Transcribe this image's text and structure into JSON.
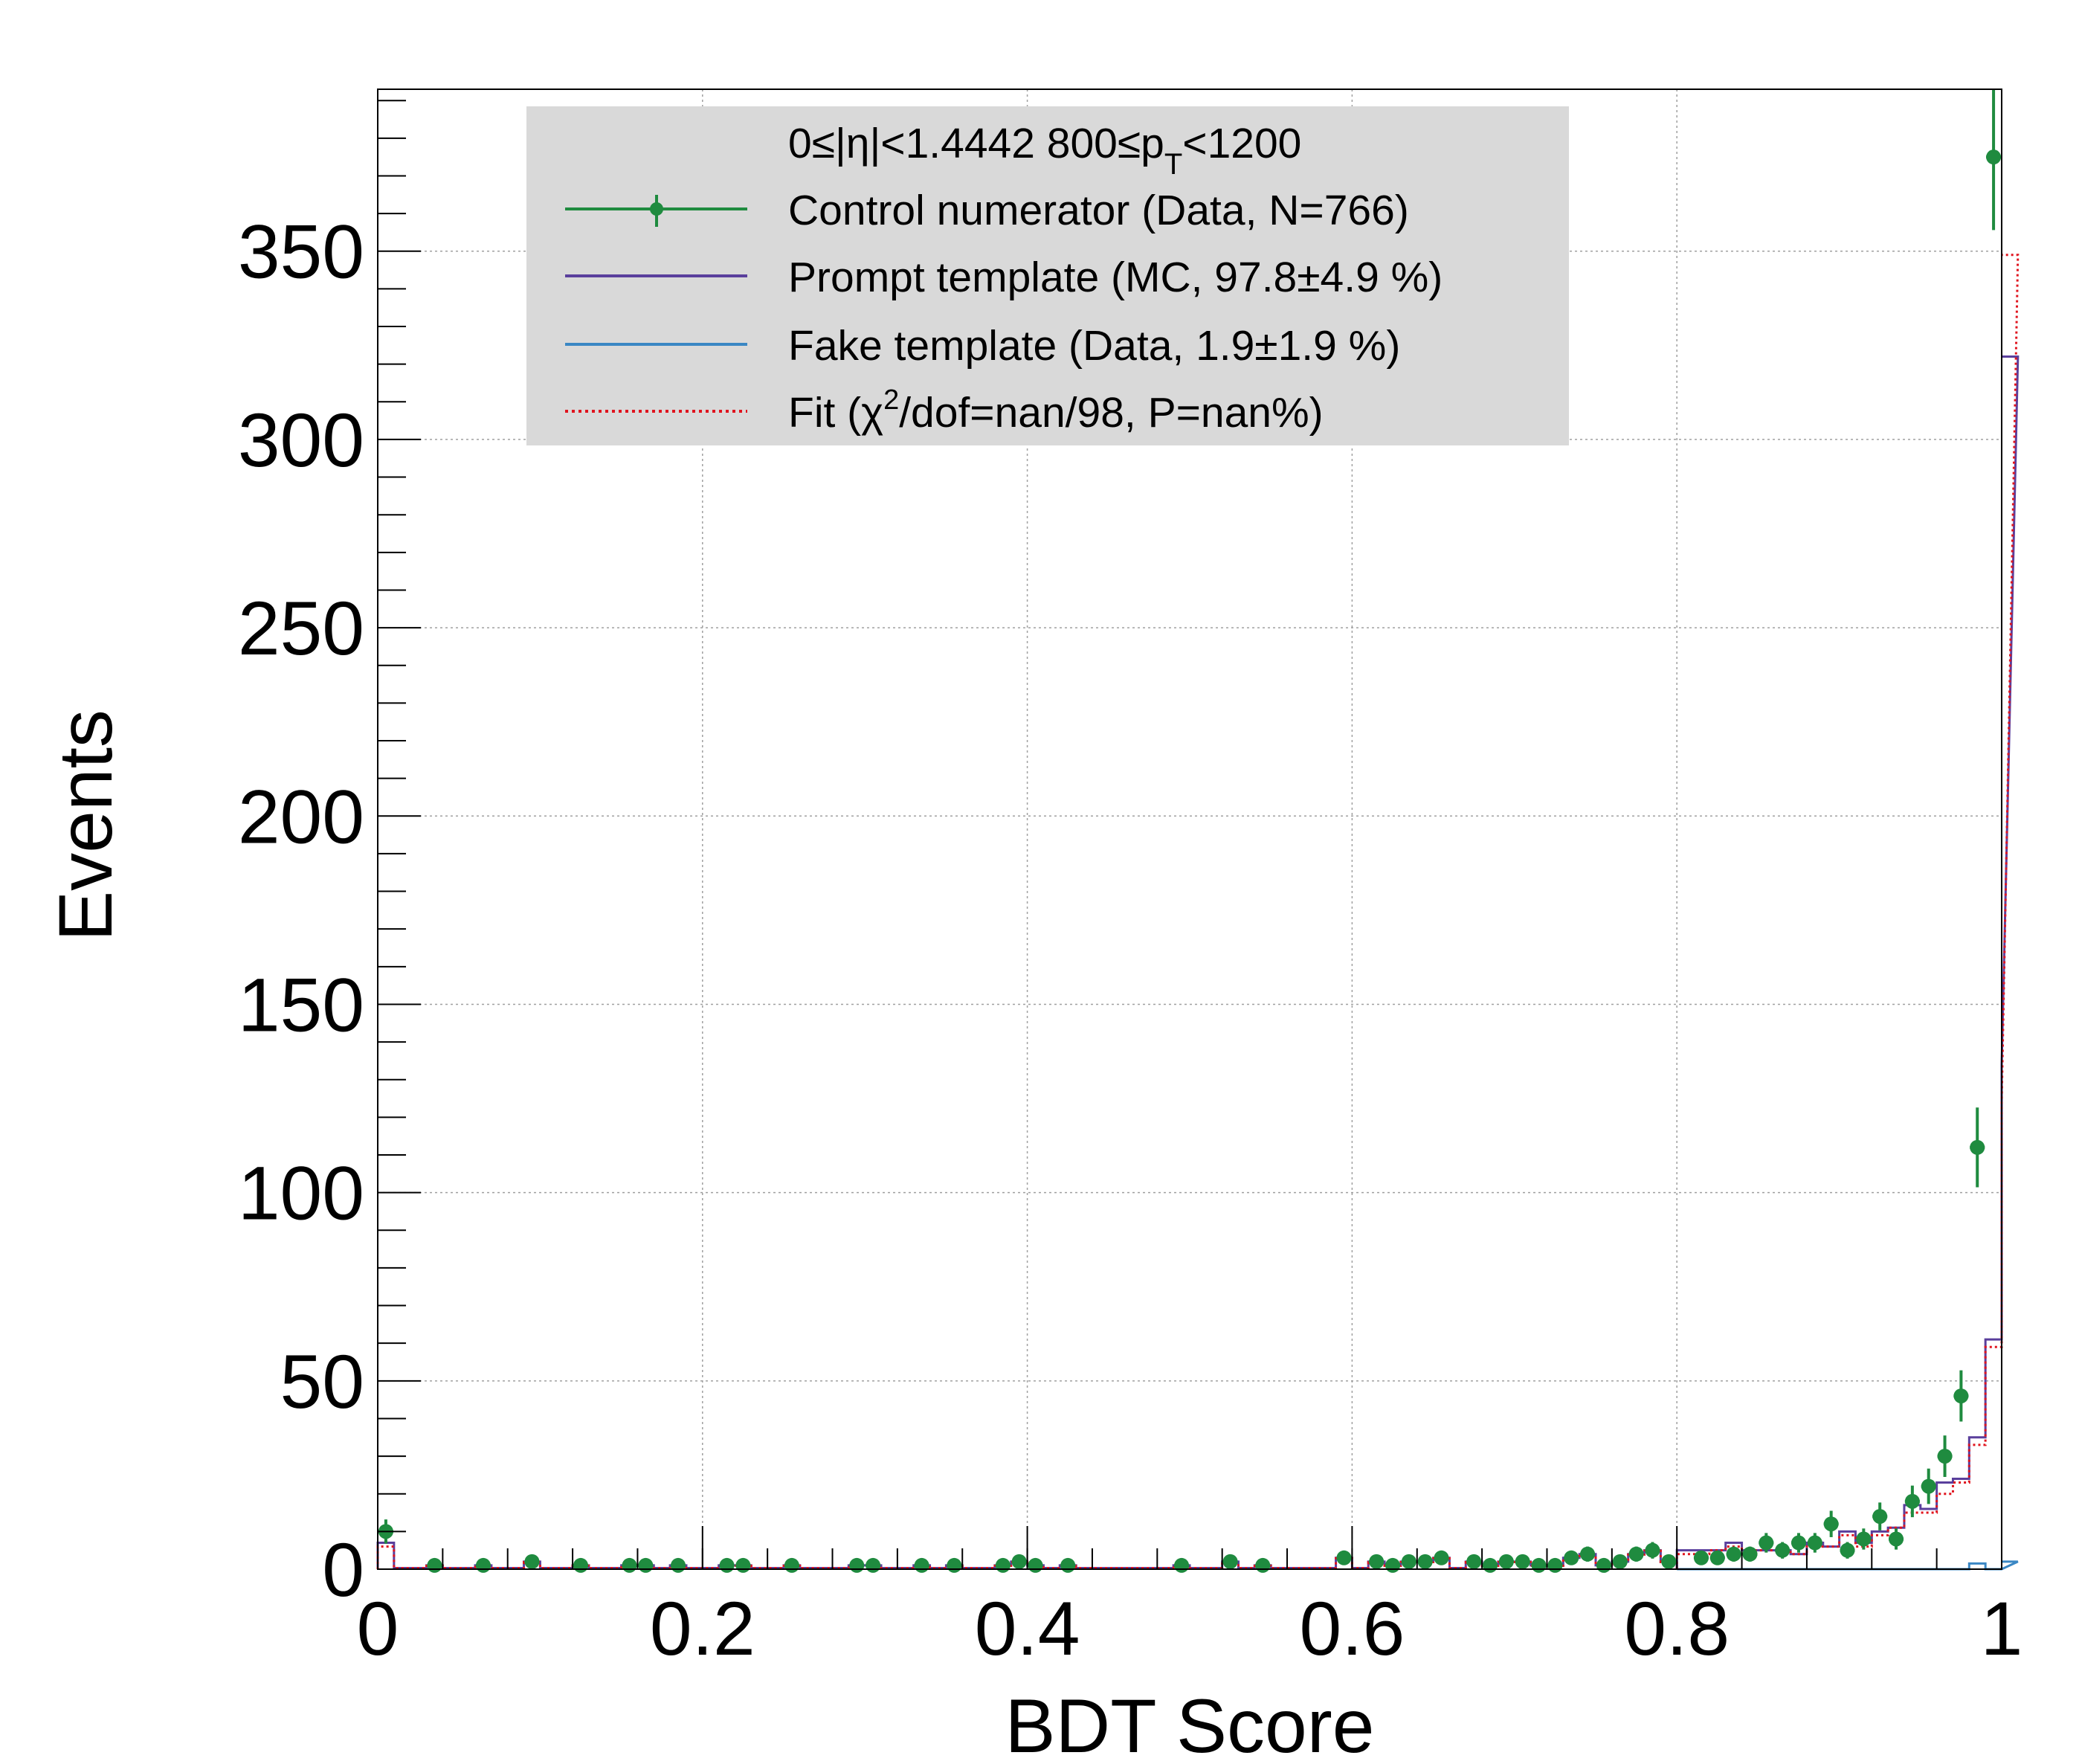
{
  "chart_data": {
    "type": "histogram",
    "xlabel": "BDT Score",
    "ylabel": "Events",
    "xlim": [
      0,
      1
    ],
    "ylim": [
      0,
      393
    ],
    "grid": true,
    "x_ticks": [
      0,
      0.2,
      0.4,
      0.6,
      0.8,
      1
    ],
    "x_tick_labels": [
      "0",
      "0.2",
      "0.4",
      "0.6",
      "0.8",
      "1"
    ],
    "y_ticks": [
      0,
      50,
      100,
      150,
      200,
      250,
      300,
      350
    ],
    "y_tick_labels": [
      "0",
      "50",
      "100",
      "150",
      "200",
      "250",
      "300",
      "350"
    ],
    "bin_edges_start": 0.8,
    "bin_width": 0.01,
    "legend": {
      "placement": "top-left",
      "header": {
        "main": "0≤|η|<1.4442  800≤p",
        "sub": "T",
        "tail": "<1200"
      },
      "entries": [
        {
          "key": "data",
          "label": "Control numerator (Data, N=766)"
        },
        {
          "key": "prompt",
          "label": "Prompt template (MC, 97.8±4.9 %)"
        },
        {
          "key": "fake",
          "label": "Fake template (Data, 1.9±1.9 %)"
        },
        {
          "key": "fit",
          "label_pre": "Fit (χ",
          "label_sup": "2",
          "label_post": "/dof=nan/98, P=nan%)"
        }
      ]
    },
    "colors": {
      "data": "#1f8b3f",
      "prompt": "#5a3f9c",
      "fake": "#3a87c4",
      "fit": "#e0141e",
      "legend_bg": "#d9d9d9",
      "grid": "#a0a0a0"
    },
    "series": [
      {
        "name": "Control numerator (Data, N=766)",
        "key": "data",
        "style": "points",
        "x": [
          0.005,
          0.035,
          0.065,
          0.095,
          0.125,
          0.155,
          0.165,
          0.185,
          0.215,
          0.225,
          0.255,
          0.295,
          0.305,
          0.335,
          0.355,
          0.385,
          0.395,
          0.405,
          0.425,
          0.495,
          0.525,
          0.545,
          0.595,
          0.615,
          0.625,
          0.635,
          0.645,
          0.655,
          0.675,
          0.685,
          0.695,
          0.705,
          0.715,
          0.725,
          0.735,
          0.745,
          0.755,
          0.765,
          0.775,
          0.785,
          0.795,
          0.815,
          0.825,
          0.835,
          0.845,
          0.855,
          0.865,
          0.875,
          0.885,
          0.895,
          0.905,
          0.915,
          0.925,
          0.935,
          0.945,
          0.955,
          0.965,
          0.975,
          0.985,
          0.995
        ],
        "y": [
          10,
          1,
          1,
          2,
          1,
          1,
          1,
          1,
          1,
          1,
          1,
          1,
          1,
          1,
          1,
          1,
          2,
          1,
          1,
          1,
          2,
          1,
          3,
          2,
          1,
          2,
          2,
          3,
          2,
          1,
          2,
          2,
          1,
          1,
          3,
          4,
          1,
          2,
          4,
          5,
          2,
          3,
          3,
          4,
          4,
          7,
          5,
          7,
          7,
          12,
          5,
          8,
          14,
          8,
          18,
          22,
          30,
          46,
          112,
          375
        ],
        "yerr": [
          3.2,
          1,
          1,
          1.4,
          1,
          1,
          1,
          1,
          1,
          1,
          1,
          1,
          1,
          1,
          1,
          1,
          1.4,
          1,
          1,
          1,
          1.4,
          1,
          1.7,
          1.4,
          1,
          1.4,
          1.4,
          1.7,
          1.4,
          1,
          1.4,
          1.4,
          1,
          1,
          1.7,
          2,
          1,
          1.4,
          2,
          2.2,
          1.4,
          1.7,
          1.7,
          2,
          2,
          2.6,
          2.2,
          2.6,
          2.6,
          3.5,
          2.2,
          2.8,
          3.7,
          2.8,
          4.2,
          4.7,
          5.5,
          6.8,
          10.6,
          19.4
        ]
      },
      {
        "name": "Prompt template (MC, 97.8±4.9 %)",
        "key": "prompt",
        "style": "step",
        "values": [
          5,
          5,
          5,
          7,
          5,
          5,
          5,
          4,
          7,
          6,
          10,
          7,
          10,
          11,
          17,
          16,
          23,
          24,
          35,
          61,
          134,
          322
        ]
      },
      {
        "name": "Fake template (Data, 1.9±1.9 %)",
        "key": "fake",
        "style": "step",
        "values": [
          0,
          0,
          0,
          0,
          0,
          0,
          0,
          0,
          0,
          0,
          0,
          0,
          0,
          0,
          0,
          0,
          0,
          0,
          1.5,
          0,
          0,
          2
        ]
      },
      {
        "name": "Fit (χ2/dof=nan/98, P=nan%)",
        "key": "fit",
        "style": "step-dotted",
        "values": [
          4,
          4,
          5,
          6,
          5,
          5,
          5,
          4,
          6,
          6,
          9,
          6,
          9,
          11,
          15,
          15,
          20,
          23,
          33,
          59,
          124,
          349
        ]
      }
    ]
  }
}
